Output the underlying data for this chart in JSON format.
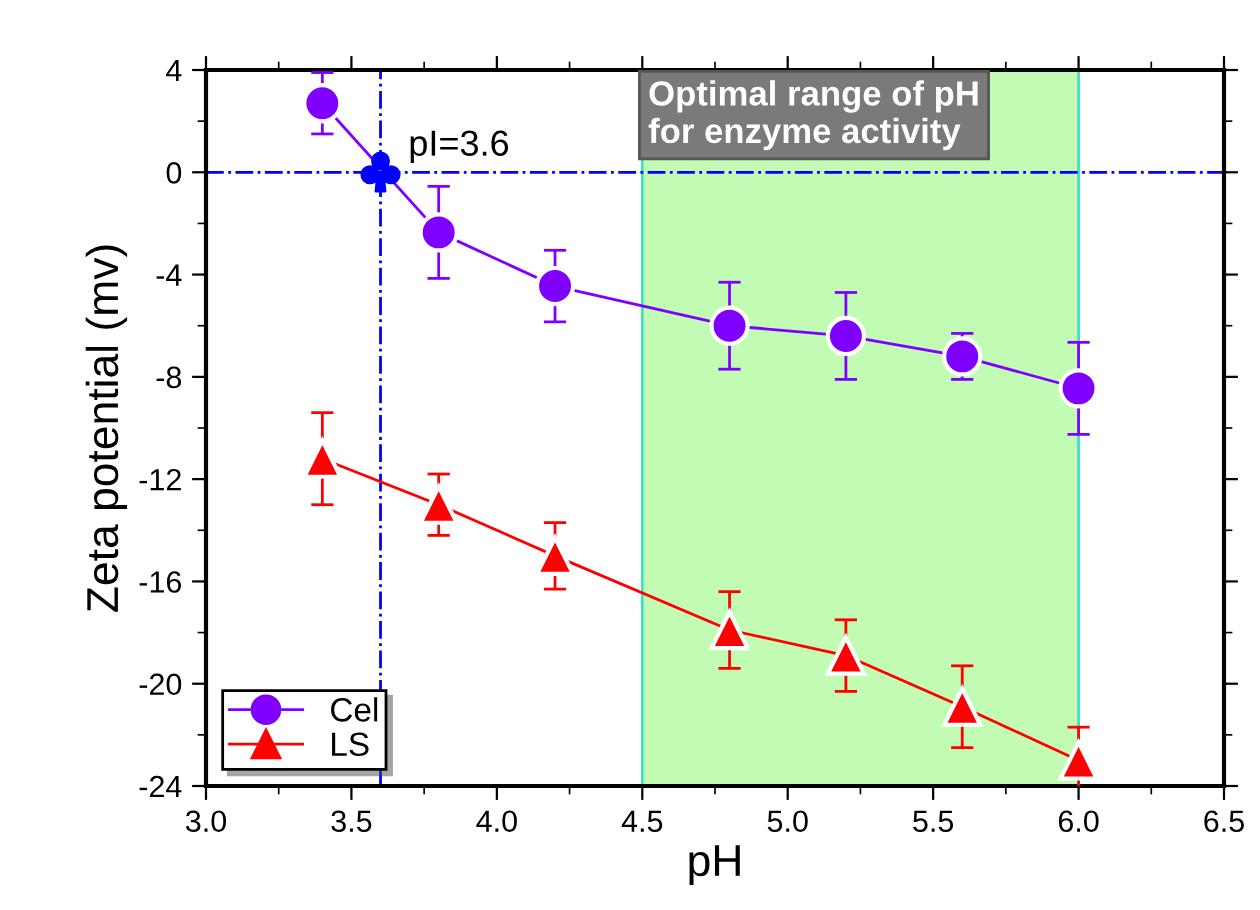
{
  "chart_data": {
    "type": "line",
    "xlabel": "pH",
    "ylabel": "Zeta potential (mv)",
    "x": [
      3.4,
      3.8,
      4.2,
      4.8,
      5.2,
      5.6,
      6.0
    ],
    "series": [
      {
        "name": "Cel",
        "color": "#7f00ff",
        "marker": "circle",
        "values": [
          2.7,
          -2.35,
          -4.45,
          -6.0,
          -6.4,
          -7.2,
          -8.45
        ],
        "errors": [
          1.2,
          1.8,
          1.4,
          1.7,
          1.7,
          0.9,
          1.8
        ]
      },
      {
        "name": "LS",
        "color": "#ff0000",
        "marker": "triangle",
        "values": [
          -11.2,
          -13.0,
          -15.0,
          -17.9,
          -18.9,
          -20.9,
          -23.0
        ],
        "errors": [
          1.8,
          1.2,
          1.3,
          1.5,
          1.4,
          1.6,
          1.3
        ]
      }
    ],
    "xlim": [
      3.0,
      6.5
    ],
    "xticks": [
      {
        "value": 3,
        "label": "3.0"
      },
      3.5,
      {
        "value": 4,
        "label": "4.0"
      },
      4.5,
      {
        "value": 5,
        "label": "5.0"
      },
      5.5,
      {
        "value": 6,
        "label": "6.0"
      },
      6.5
    ],
    "ylim": [
      -24,
      4
    ],
    "yticks": [
      -24,
      -20,
      -16,
      -12,
      -8,
      -4,
      0,
      4
    ],
    "ref_lines": [
      {
        "axis": "x",
        "value": 3.6,
        "color": "#0000ff",
        "line_style": "dashdot"
      },
      {
        "axis": "y",
        "value": 0,
        "color": "#0000ff",
        "line_style": "dashdot"
      }
    ],
    "bands": [
      {
        "axis": "x",
        "from": 4.5,
        "to": 6.0,
        "label": "Optimal range of pH\nfor enzyme activity",
        "color": "#c2fcb4"
      }
    ],
    "annotations": [
      {
        "text": "pI=3.6",
        "x": 3.6,
        "y": 0
      }
    ],
    "legend": "bottom left",
    "grid": false,
    "line_style": "solid"
  }
}
